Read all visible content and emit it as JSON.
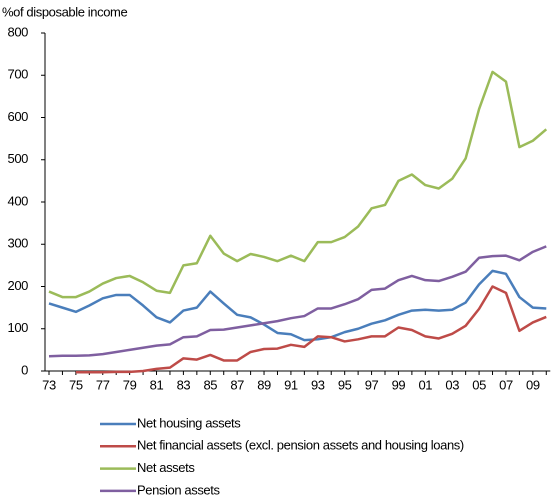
{
  "chart_data": {
    "type": "line",
    "y_axis_label": "%of disposable income",
    "categories": [
      "73",
      null,
      "75",
      null,
      "77",
      null,
      "79",
      null,
      "81",
      null,
      "83",
      null,
      "85",
      null,
      "87",
      null,
      "89",
      null,
      "91",
      null,
      "93",
      null,
      "95",
      null,
      "97",
      null,
      "99",
      null,
      "01",
      null,
      "03",
      null,
      "05",
      null,
      "07",
      null,
      "09",
      null
    ],
    "series": [
      {
        "name": "Net housing assets",
        "color": "#4a7ebb",
        "values": [
          160,
          150,
          140,
          155,
          172,
          180,
          180,
          155,
          127,
          115,
          143,
          150,
          188,
          160,
          133,
          127,
          110,
          90,
          87,
          73,
          75,
          80,
          92,
          100,
          112,
          120,
          133,
          143,
          145,
          143,
          145,
          162,
          205,
          237,
          230,
          175,
          150,
          148
        ]
      },
      {
        "name": "Net financial assets (excl. pension assets and housing loans)",
        "color": "#be4b48",
        "values": [
          null,
          null,
          -3,
          -3,
          -3,
          -2,
          -2,
          0,
          5,
          8,
          30,
          27,
          38,
          25,
          25,
          45,
          52,
          53,
          62,
          57,
          82,
          80,
          70,
          75,
          82,
          82,
          103,
          97,
          82,
          77,
          88,
          107,
          147,
          200,
          185,
          95,
          115,
          128
        ]
      },
      {
        "name": "Net assets",
        "color": "#9bbb59",
        "values": [
          188,
          175,
          175,
          188,
          207,
          220,
          225,
          210,
          190,
          185,
          250,
          255,
          320,
          278,
          260,
          277,
          270,
          260,
          273,
          260,
          305,
          305,
          317,
          342,
          385,
          393,
          450,
          465,
          440,
          432,
          455,
          503,
          620,
          708,
          685,
          530,
          545,
          572
        ]
      },
      {
        "name": "Pension assets",
        "color": "#7f5fa0",
        "values": [
          35,
          36,
          36,
          37,
          40,
          45,
          50,
          55,
          60,
          63,
          80,
          82,
          97,
          98,
          103,
          108,
          113,
          118,
          125,
          130,
          148,
          148,
          158,
          170,
          192,
          195,
          215,
          225,
          215,
          213,
          223,
          235,
          268,
          272,
          273,
          262,
          282,
          295
        ]
      }
    ],
    "ylim": [
      0,
      800
    ],
    "yticks": [
      0,
      100,
      200,
      300,
      400,
      500,
      600,
      700,
      800
    ],
    "grid": false
  }
}
